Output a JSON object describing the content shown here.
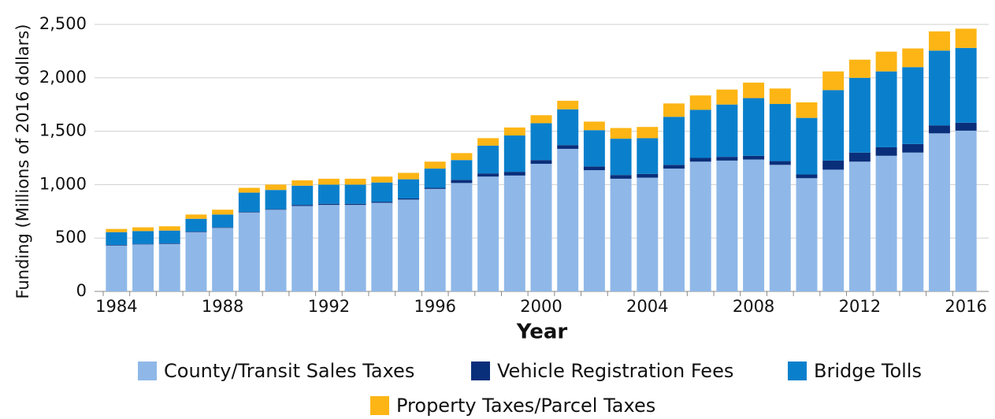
{
  "chart_data": {
    "type": "stacked_bar",
    "x_label": "Year",
    "y_label": "Funding (Millions of 2016 dollars)",
    "categories": [
      "1984",
      null,
      null,
      null,
      "1988",
      null,
      null,
      null,
      "1992",
      null,
      null,
      null,
      "1996",
      null,
      null,
      null,
      "2000",
      null,
      null,
      null,
      "2004",
      null,
      null,
      null,
      "2008",
      null,
      null,
      null,
      "2012",
      null,
      null,
      null,
      "2016"
    ],
    "series": [
      {
        "name": "County/Transit Sales Taxes",
        "color": "#8fb8e8",
        "values": [
          430,
          440,
          445,
          555,
          595,
          740,
          765,
          800,
          810,
          810,
          830,
          860,
          960,
          1015,
          1075,
          1085,
          1195,
          1335,
          1135,
          1055,
          1065,
          1150,
          1215,
          1225,
          1235,
          1185,
          1060,
          1140,
          1215,
          1270,
          1300,
          1480,
          1505
        ]
      },
      {
        "name": "Vehicle Registration Fees",
        "color": "#0a2f7a",
        "values": [
          5,
          5,
          5,
          5,
          5,
          5,
          5,
          10,
          10,
          10,
          10,
          10,
          10,
          30,
          30,
          35,
          35,
          35,
          35,
          35,
          35,
          35,
          35,
          35,
          35,
          35,
          35,
          85,
          85,
          80,
          80,
          75,
          75
        ]
      },
      {
        "name": "Bridge Tolls",
        "color": "#0a80cc",
        "values": [
          120,
          120,
          120,
          120,
          120,
          180,
          180,
          180,
          180,
          180,
          180,
          180,
          180,
          185,
          260,
          340,
          345,
          335,
          340,
          340,
          335,
          450,
          450,
          490,
          540,
          535,
          530,
          660,
          700,
          710,
          720,
          700,
          700
        ]
      },
      {
        "name": "Property Taxes/Parcel Taxes",
        "color": "#fdb515",
        "values": [
          30,
          35,
          40,
          40,
          45,
          45,
          50,
          50,
          55,
          55,
          55,
          60,
          65,
          65,
          70,
          75,
          75,
          80,
          80,
          100,
          105,
          125,
          135,
          140,
          145,
          145,
          145,
          175,
          170,
          185,
          175,
          180,
          180
        ]
      }
    ],
    "ylim": [
      0,
      2500
    ],
    "yticks": [
      0,
      500,
      {
        "value": 1000,
        "label": "1,000"
      },
      {
        "value": 1500,
        "label": "1,500"
      },
      {
        "value": 2000,
        "label": "2,000"
      },
      {
        "value": 2500,
        "label": "2,500"
      }
    ],
    "grid": true
  }
}
